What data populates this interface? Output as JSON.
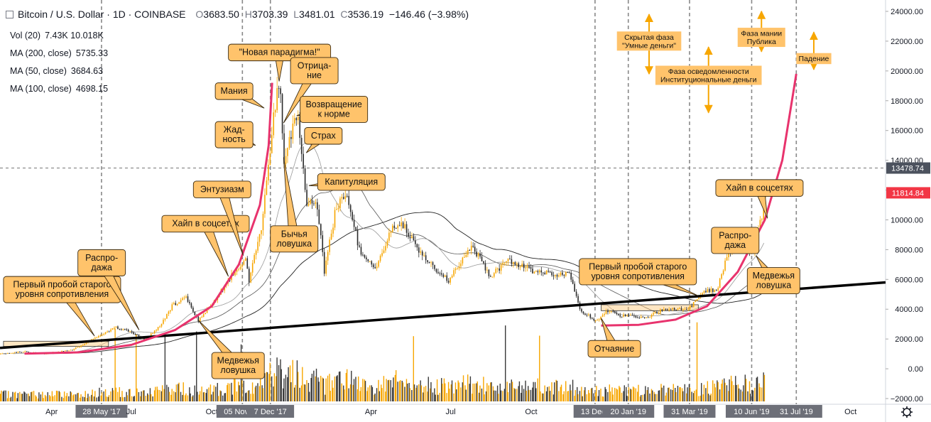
{
  "header": {
    "symbol": "Bitcoin / U.S. Dollar · 1D · COINBASE",
    "open_label": "O",
    "open": "3683.50",
    "high_label": "H",
    "high": "3703.39",
    "low_label": "L",
    "low": "3481.01",
    "close_label": "C",
    "close": "3536.19",
    "change": "−146.46 (−3.98%)"
  },
  "indicators": [
    {
      "label": "Vol (20)",
      "values": "7.43K  10.018K"
    },
    {
      "label": "MA (200, close)",
      "values": "5735.33"
    },
    {
      "label": "MA (50, close)",
      "values": "3684.63"
    },
    {
      "label": "MA (100, close)",
      "values": "4698.15"
    }
  ],
  "colors": {
    "up": "#f7a600",
    "down": "#2a2a2a",
    "curve": "#e8336d",
    "callout_fill": "#ffc36b",
    "callout_border": "#3a2a10",
    "arrow": "#f7a600",
    "trendline": "#000000",
    "grid_dash": "#888888",
    "price_tag_current": "#f23645",
    "price_tag_cross": "#4c525e"
  },
  "chart_data": {
    "type": "candlestick",
    "title": "Bitcoin / U.S. Dollar · 1D · COINBASE",
    "ylim": [
      -2000,
      24000
    ],
    "y_ticks": [
      "24000.00",
      "22000.00",
      "20000.00",
      "18000.00",
      "16000.00",
      "14000.00",
      "12000.00",
      "10000.00",
      "8000.00",
      "6000.00",
      "4000.00",
      "2000.00",
      "0.00",
      "−2000.00"
    ],
    "y_tick_values": [
      24000,
      22000,
      20000,
      18000,
      16000,
      14000,
      12000,
      10000,
      8000,
      6000,
      4000,
      2000,
      0,
      -2000
    ],
    "price_tags": [
      {
        "value": 13478.74,
        "label": "13478.74",
        "kind": "cross"
      },
      {
        "value": 11814.84,
        "label": "11814.84",
        "kind": "current"
      }
    ],
    "crosshair_price": 13478.74,
    "x_range": [
      "2017-02-01",
      "2019-11-10"
    ],
    "x_ticks": [
      {
        "date": "2017-04-01",
        "label": "Apr",
        "highlight": false
      },
      {
        "date": "2017-05-28",
        "label": "28 May '17",
        "highlight": true
      },
      {
        "date": "2017-07-01",
        "label": "Jul",
        "highlight": false
      },
      {
        "date": "2017-10-01",
        "label": "Oct",
        "highlight": false
      },
      {
        "date": "2017-11-05",
        "label": "05 Nov '17",
        "highlight": true
      },
      {
        "date": "2017-12-07",
        "label": "7 Dec '17",
        "highlight": true
      },
      {
        "date": "2018-04-01",
        "label": "Apr",
        "highlight": false
      },
      {
        "date": "2018-07-01",
        "label": "Jul",
        "highlight": false
      },
      {
        "date": "2018-10-01",
        "label": "Oct",
        "highlight": false
      },
      {
        "date": "2018-12-13",
        "label": "13 Dec '",
        "highlight": true
      },
      {
        "date": "2019-01-20",
        "label": "20 Jan '19",
        "highlight": true
      },
      {
        "date": "2019-03-31",
        "label": "31 Mar '19",
        "highlight": true
      },
      {
        "date": "2019-06-10",
        "label": "10 Jun '19",
        "highlight": true
      },
      {
        "date": "2019-07-31",
        "label": "31 Jul '19",
        "highlight": true
      },
      {
        "date": "2019-10-01",
        "label": "Oct",
        "highlight": false
      }
    ],
    "vertical_markers": [
      "2017-05-28",
      "2017-11-05",
      "2017-12-07",
      "2018-12-13",
      "2019-01-20",
      "2019-03-31",
      "2019-06-10",
      "2019-07-31"
    ],
    "price_path": [
      [
        "2017-02-01",
        1000
      ],
      [
        "2017-03-01",
        1150
      ],
      [
        "2017-03-20",
        1000
      ],
      [
        "2017-04-01",
        1080
      ],
      [
        "2017-04-25",
        1300
      ],
      [
        "2017-05-25",
        2200
      ],
      [
        "2017-06-12",
        2800
      ],
      [
        "2017-06-30",
        2500
      ],
      [
        "2017-07-16",
        1950
      ],
      [
        "2017-08-01",
        2800
      ],
      [
        "2017-08-17",
        4300
      ],
      [
        "2017-09-01",
        4800
      ],
      [
        "2017-09-15",
        3200
      ],
      [
        "2017-10-01",
        4400
      ],
      [
        "2017-10-20",
        6000
      ],
      [
        "2017-11-08",
        7400
      ],
      [
        "2017-11-12",
        5900
      ],
      [
        "2017-11-26",
        9500
      ],
      [
        "2017-12-08",
        16000
      ],
      [
        "2017-12-17",
        19500
      ],
      [
        "2017-12-22",
        14000
      ],
      [
        "2018-01-06",
        17000
      ],
      [
        "2018-01-17",
        11000
      ],
      [
        "2018-01-28",
        11500
      ],
      [
        "2018-02-06",
        6500
      ],
      [
        "2018-02-20",
        11000
      ],
      [
        "2018-03-05",
        11500
      ],
      [
        "2018-03-18",
        8000
      ],
      [
        "2018-04-06",
        6700
      ],
      [
        "2018-04-25",
        9500
      ],
      [
        "2018-05-05",
        9800
      ],
      [
        "2018-05-30",
        7500
      ],
      [
        "2018-06-28",
        5900
      ],
      [
        "2018-07-25",
        8300
      ],
      [
        "2018-08-14",
        6200
      ],
      [
        "2018-09-05",
        7300
      ],
      [
        "2018-09-30",
        6600
      ],
      [
        "2018-10-25",
        6400
      ],
      [
        "2018-11-14",
        6300
      ],
      [
        "2018-11-25",
        3900
      ],
      [
        "2018-12-15",
        3200
      ],
      [
        "2018-12-25",
        3900
      ],
      [
        "2019-01-10",
        3600
      ],
      [
        "2019-02-07",
        3400
      ],
      [
        "2019-02-25",
        3900
      ],
      [
        "2019-03-31",
        4100
      ],
      [
        "2019-04-15",
        5100
      ],
      [
        "2019-05-01",
        5400
      ],
      [
        "2019-05-14",
        7900
      ],
      [
        "2019-06-01",
        8500
      ],
      [
        "2019-06-10",
        7700
      ],
      [
        "2019-06-17",
        9300
      ],
      [
        "2019-06-21",
        10300
      ],
      [
        "2019-06-24",
        11800
      ]
    ],
    "annotations": [
      {
        "text": "Первый пробой старого\nуровня сопротивления",
        "box": [
          "2017-02-05",
          6200
        ],
        "target": [
          "2017-05-20",
          2200
        ]
      },
      {
        "text": "Распро-\nдажа",
        "box": [
          "2017-05-01",
          8000
        ],
        "target": [
          "2017-07-10",
          2600
        ]
      },
      {
        "text": "Хайп в соцсетях",
        "box": [
          "2017-08-05",
          10300
        ],
        "target": [
          "2017-10-20",
          6200
        ]
      },
      {
        "text": "Медвежья\nловушка",
        "box": [
          "2017-10-01",
          1100
        ],
        "target": [
          "2017-09-15",
          3300
        ]
      },
      {
        "text": "Энтузиазм",
        "box": [
          "2017-09-10",
          12600
        ],
        "target": [
          "2017-11-06",
          7600
        ]
      },
      {
        "text": "Жад-\nность",
        "box": [
          "2017-10-05",
          16600
        ],
        "target": [
          "2017-11-20",
          15000
        ]
      },
      {
        "text": "Мания",
        "box": [
          "2017-10-05",
          19200
        ],
        "target": [
          "2017-11-30",
          17500
        ]
      },
      {
        "text": "\"Новая парадигма!\"",
        "box": [
          "2017-10-20",
          21800
        ],
        "target": [
          "2017-12-17",
          19300
        ]
      },
      {
        "text": "Отрица-\nние",
        "box": [
          "2017-12-30",
          20900
        ],
        "target": [
          "2017-12-22",
          16500
        ]
      },
      {
        "text": "Возвращение\nк норме",
        "box": [
          "2018-01-10",
          18300
        ],
        "target": [
          "2018-01-06",
          17000
        ]
      },
      {
        "text": "Страх",
        "box": [
          "2018-01-15",
          16200
        ],
        "target": [
          "2018-01-17",
          14500
        ]
      },
      {
        "text": "Капитуляция",
        "box": [
          "2018-01-30",
          13100
        ],
        "target": [
          "2018-01-20",
          12300
        ]
      },
      {
        "text": "Бычья\nловушка",
        "box": [
          "2017-12-07",
          9600
        ],
        "target": [
          "2017-12-22",
          14200
        ]
      },
      {
        "text": "Первый пробой старого\nуровня сопротивления",
        "box": [
          "2018-11-25",
          7400
        ],
        "target": [
          "2019-04-10",
          4900
        ]
      },
      {
        "text": "Отчаяние",
        "box": [
          "2018-12-05",
          1900
        ],
        "target": [
          "2018-12-20",
          3400
        ]
      },
      {
        "text": "Распро-\nдажа",
        "box": [
          "2019-04-25",
          9500
        ],
        "target": [
          "2019-06-15",
          8100
        ]
      },
      {
        "text": "Хайп в соцсетях",
        "box": [
          "2019-04-30",
          12700
        ],
        "target": [
          "2019-06-28",
          10100
        ]
      },
      {
        "text": "Медвежья\nловушка",
        "box": [
          "2019-06-05",
          6800
        ],
        "target": [
          "2019-06-15",
          7600
        ]
      }
    ],
    "phases": [
      {
        "text": "Скрытая фаза\n\"Умные деньги\"",
        "box": [
          "2019-01-07",
          22650
        ],
        "arrow_y": [
          23800,
          19800
        ]
      },
      {
        "text": "Фаза осведомленности\nИнституциональные деньги",
        "box": [
          "2019-02-20",
          20350
        ],
        "arrow_y": [
          21600,
          17200
        ]
      },
      {
        "text": "Фаза мании\nПублика",
        "box": [
          "2019-05-25",
          22900
        ],
        "arrow_y": [
          24000,
          21300
        ]
      },
      {
        "text": "Падение",
        "box": [
          "2019-07-31",
          21200
        ],
        "arrow_y": [
          22600,
          20100
        ]
      }
    ],
    "trendline": [
      [
        "2017-02-01",
        1400
      ],
      [
        "2019-11-10",
        5800
      ]
    ],
    "resistance_boxes": [
      {
        "from": "2017-02-05",
        "to": "2017-06-05",
        "low": 1500,
        "high": 1850
      },
      {
        "from": "2018-12-20",
        "to": "2019-04-10",
        "low": 3900,
        "high": 4300
      }
    ]
  }
}
